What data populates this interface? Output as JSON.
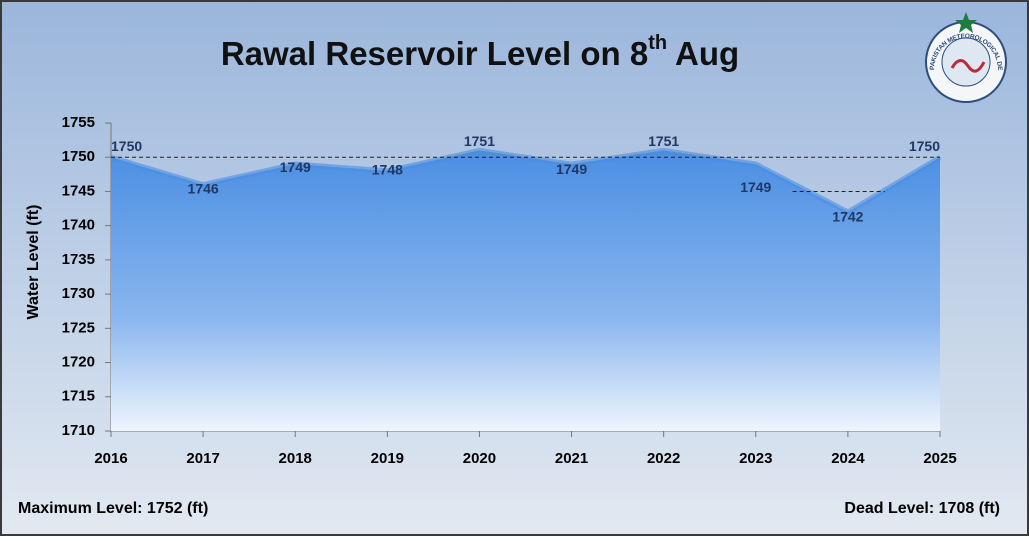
{
  "chart_data": {
    "type": "area",
    "title_parts": [
      "Rawal Reservoir Level on 8",
      "th",
      " Aug"
    ],
    "y_label": "Water Level (ft)",
    "x": [
      2016,
      2017,
      2018,
      2019,
      2020,
      2021,
      2022,
      2023,
      2024,
      2025
    ],
    "values": [
      1750,
      1746,
      1749,
      1748,
      1751,
      1749,
      1751,
      1749,
      1742,
      1750
    ],
    "xlim": [
      2016,
      2025
    ],
    "xticks": [
      2016,
      2017,
      2018,
      2019,
      2020,
      2021,
      2022,
      2023,
      2024,
      2025
    ],
    "ylim": [
      1710,
      1755
    ],
    "yticks": [
      1710,
      1715,
      1720,
      1725,
      1730,
      1735,
      1740,
      1745,
      1750,
      1755
    ],
    "color": "#4a8ee3",
    "reference_lines": [
      {
        "y": 1750,
        "xlim": [
          2016,
          2025
        ]
      },
      {
        "y": 1745,
        "xlim": [
          2023.4,
          2024.4
        ]
      }
    ],
    "footer_left": "Maximum Level: 1752 (ft)",
    "footer_right": "Dead Level: 1708 (ft)",
    "logo_text": "PAKISTAN METEOROLOGICAL DEPARTMENT"
  }
}
